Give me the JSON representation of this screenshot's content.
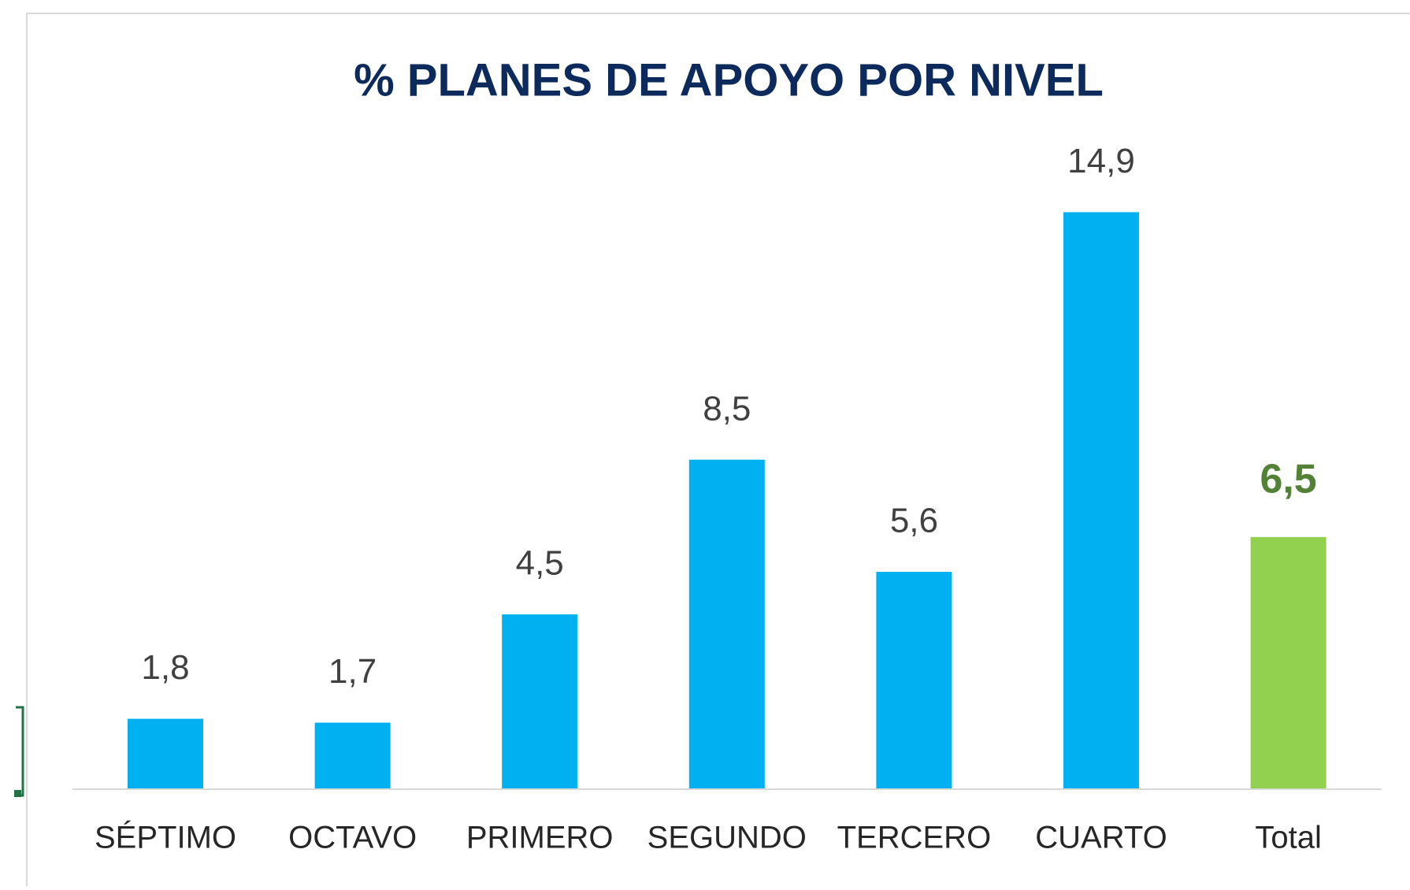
{
  "chart_data": {
    "type": "bar",
    "title": "% PLANES DE APOYO POR NIVEL",
    "categories": [
      "SÉPTIMO",
      "OCTAVO",
      "PRIMERO",
      "SEGUNDO",
      "TERCERO",
      "CUARTO",
      "Total"
    ],
    "values": [
      1.8,
      1.7,
      4.5,
      8.5,
      5.6,
      14.9,
      6.5
    ],
    "value_labels": [
      "1,8",
      "1,7",
      "4,5",
      "8,5",
      "5,6",
      "14,9",
      "6,5"
    ],
    "colors": [
      "#00b0f0",
      "#00b0f0",
      "#00b0f0",
      "#00b0f0",
      "#00b0f0",
      "#00b0f0",
      "#92d050"
    ],
    "label_colors": [
      "#404040",
      "#404040",
      "#404040",
      "#404040",
      "#404040",
      "#404040",
      "#538135"
    ]
  }
}
